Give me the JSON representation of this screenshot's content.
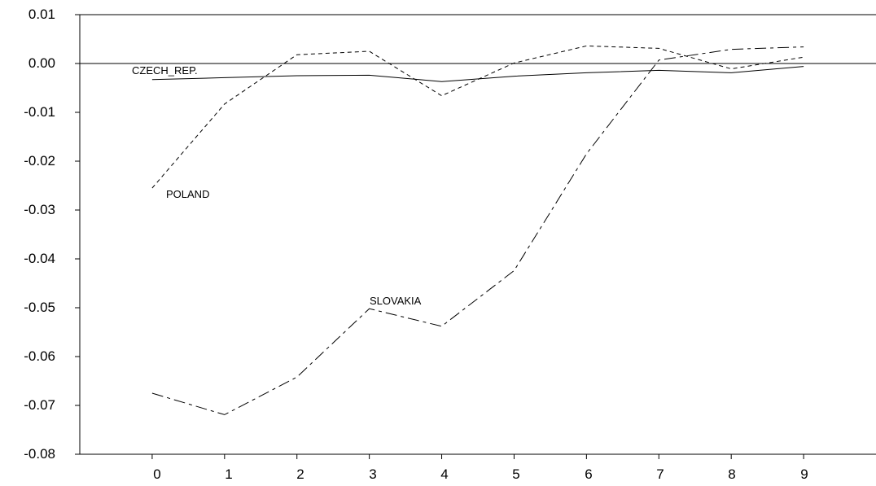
{
  "chart_data": {
    "type": "line",
    "x": [
      0,
      1,
      2,
      3,
      4,
      5,
      6,
      7,
      8,
      9
    ],
    "ylim": [
      -0.08,
      0.01
    ],
    "xlim": [
      -1,
      10
    ],
    "yticks": [
      "0.01",
      "0.00",
      "-0.01",
      "-0.02",
      "-0.03",
      "-0.04",
      "-0.05",
      "-0.06",
      "-0.07",
      "-0.08"
    ],
    "xticks": [
      "0",
      "1",
      "2",
      "3",
      "4",
      "5",
      "6",
      "7",
      "8",
      "9"
    ],
    "grid": false,
    "zero_line": true,
    "series": [
      {
        "name": "CZECH_REP.",
        "style": "solid",
        "values": [
          -0.0033,
          -0.0029,
          -0.0025,
          -0.0024,
          -0.0037,
          -0.0026,
          -0.0019,
          -0.0014,
          -0.0019,
          -0.0006
        ]
      },
      {
        "name": "POLAND",
        "style": "short-dash",
        "values": [
          -0.0255,
          -0.0083,
          0.0018,
          0.0025,
          -0.0066,
          0.0001,
          0.0036,
          0.0031,
          -0.0011,
          0.0013
        ]
      },
      {
        "name": "SLOVAKIA",
        "style": "long-dash",
        "values": [
          -0.0675,
          -0.0719,
          -0.0642,
          -0.0502,
          -0.0538,
          -0.0424,
          -0.0185,
          0.0007,
          0.0029,
          0.0034
        ]
      }
    ]
  }
}
